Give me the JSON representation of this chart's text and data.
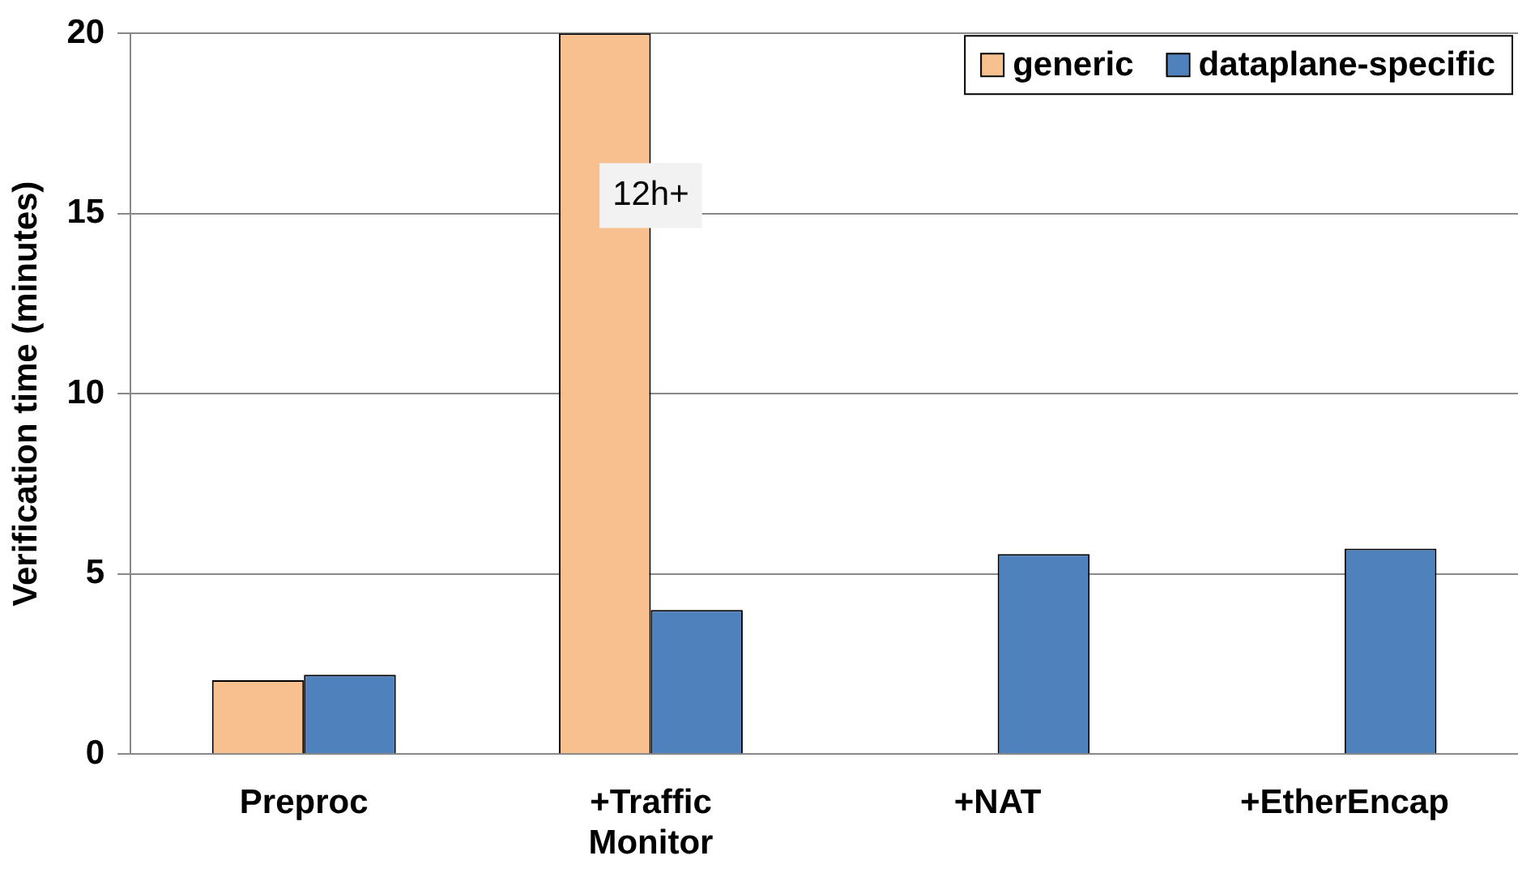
{
  "chart_data": {
    "type": "bar",
    "ylabel": "Verification time (minutes)",
    "categories": [
      "Preproc",
      "+Traffic Monitor",
      "+NAT",
      "+EtherEncap"
    ],
    "series": [
      {
        "name": "generic",
        "color": "#f9c08f",
        "values": [
          2.05,
          20,
          null,
          null
        ]
      },
      {
        "name": "dataplane-specific",
        "color": "#4f81bd",
        "values": [
          2.2,
          4.0,
          5.55,
          5.7
        ]
      }
    ],
    "ylim": [
      0,
      20
    ],
    "yticks": [
      0,
      5,
      10,
      15,
      20
    ],
    "grid": "y",
    "legend": "top right",
    "annotations": [
      {
        "text": "12h+",
        "x": "+Traffic Monitor",
        "y": 15.5
      }
    ]
  }
}
